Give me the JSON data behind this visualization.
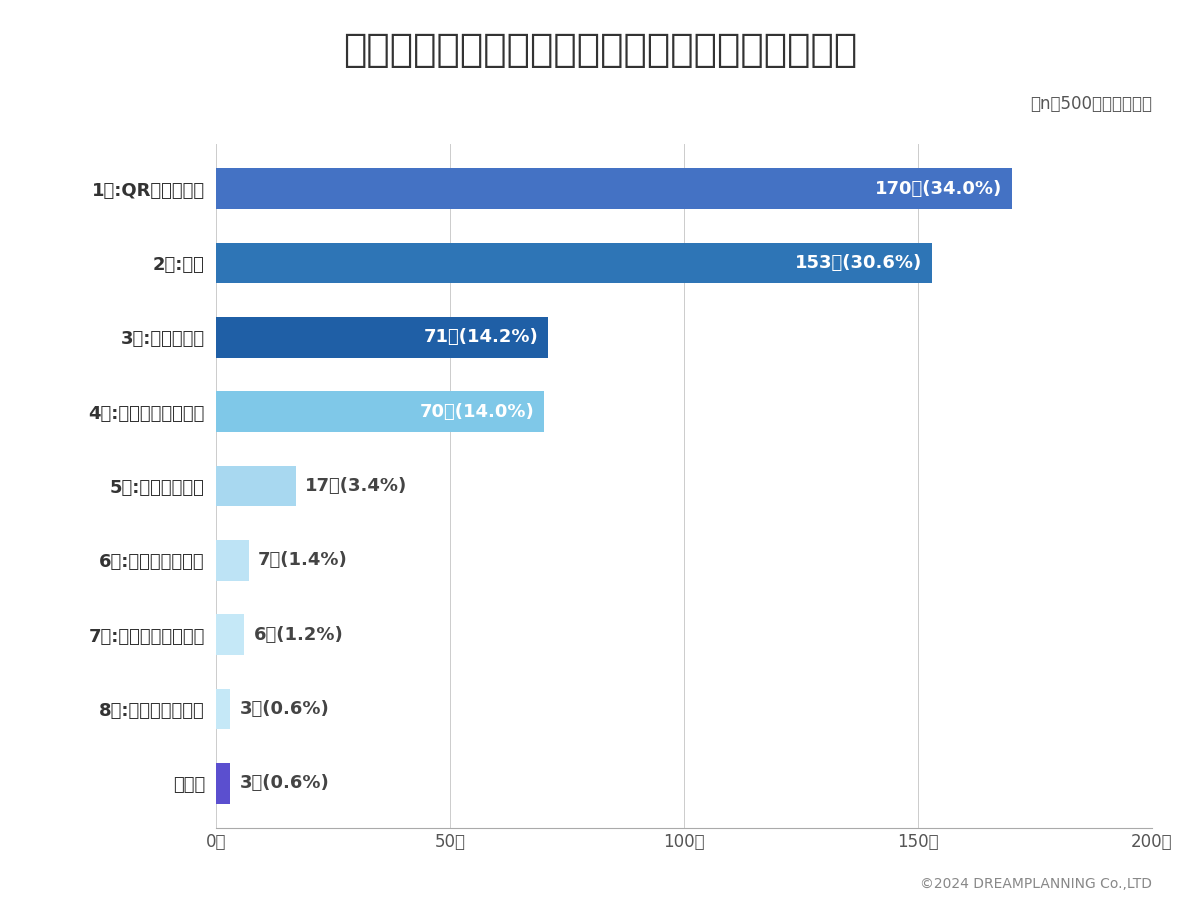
{
  "title": "コンビニの決済方法で最も使うものは何ですか？",
  "subtitle": "（n＝500　単一回答）",
  "copyright": "©2024 DREAMPLANNING Co.,LTD",
  "categories": [
    "1位:QRコード決済",
    "2位:現金",
    "3位:電子マネー",
    "4位:クレジットカード",
    "5位:モバイル決済",
    "6位:デビットカード",
    "7位:プリペイドカード",
    "8位:ポイントカード",
    "その他"
  ],
  "values": [
    170,
    153,
    71,
    70,
    17,
    7,
    6,
    3,
    3
  ],
  "percentages": [
    "34.0%",
    "30.6%",
    "14.2%",
    "14.0%",
    "3.4%",
    "1.4%",
    "1.2%",
    "0.6%",
    "0.6%"
  ],
  "bar_colors": [
    "#4472C4",
    "#2E75B6",
    "#1F5FA6",
    "#7FC8E8",
    "#A8D8F0",
    "#BDE3F5",
    "#C5E8F7",
    "#C5E8F7",
    "#5B4FCF"
  ],
  "xlim": [
    0,
    200
  ],
  "xticks": [
    0,
    50,
    100,
    150,
    200
  ],
  "xtick_labels": [
    "0人",
    "50人",
    "100人",
    "150人",
    "200人"
  ],
  "title_bg_color": "#D6E4F7",
  "title_color": "#333333",
  "bg_color": "#FFFFFF",
  "label_fontsize": 13,
  "title_fontsize": 28,
  "subtitle_fontsize": 12,
  "value_fontsize": 13,
  "bar_height": 0.55
}
